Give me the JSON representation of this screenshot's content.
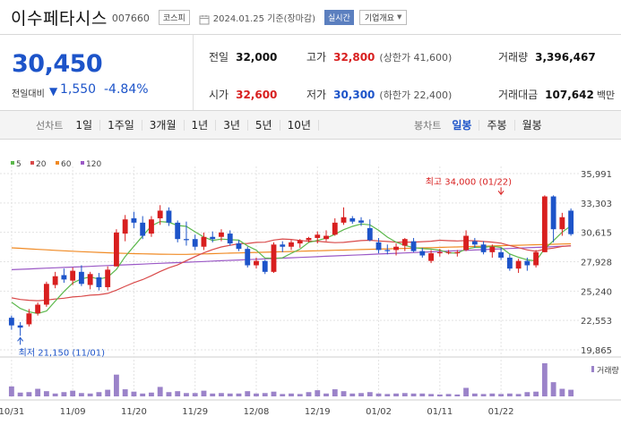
{
  "header": {
    "name": "이수페타시스",
    "code": "007660",
    "market": "코스피",
    "date_text": "2024.01.25 기준(장마감)",
    "live_label": "실시간",
    "company_label": "기업개요"
  },
  "quote": {
    "price": "30,450",
    "change_label": "전일대비",
    "change_arrow": "▼",
    "change_amount": "1,550",
    "change_pct": "-4.84%",
    "prev_close": {
      "label": "전일",
      "value": "32,000"
    },
    "high": {
      "label": "고가",
      "value": "32,800",
      "sub": "(상한가 41,600)"
    },
    "volume": {
      "label": "거래량",
      "value": "3,396,467"
    },
    "open": {
      "label": "시가",
      "value": "32,600"
    },
    "low": {
      "label": "저가",
      "value": "30,300",
      "sub": "(하한가 22,400)"
    },
    "turnover": {
      "label": "거래대금",
      "value": "107,642",
      "unit": "백만"
    }
  },
  "periods": {
    "label": "선차트",
    "items": [
      "1일",
      "1주일",
      "3개월",
      "1년",
      "3년",
      "5년",
      "10년"
    ]
  },
  "candle_periods": {
    "label": "봉차트",
    "items": [
      "일봉",
      "주봉",
      "월봉"
    ],
    "active": "일봉"
  },
  "colors": {
    "up": "#d81f1f",
    "down": "#1d54c9",
    "ma5": "#5cb84c",
    "ma20": "#d94a4a",
    "ma60": "#f08a24",
    "ma120": "#9b59c6",
    "volume": "#9b83c9"
  },
  "chart_data": {
    "type": "candlestick",
    "legend": [
      {
        "name": "5",
        "color": "#5cb84c"
      },
      {
        "name": "20",
        "color": "#d94a4a"
      },
      {
        "name": "60",
        "color": "#f08a24"
      },
      {
        "name": "120",
        "color": "#9b59c6"
      }
    ],
    "y_ticks": [
      "35,991",
      "33,303",
      "30,615",
      "27,928",
      "25,240",
      "22,553",
      "19,865"
    ],
    "y_tick_values": [
      35991,
      33303,
      30615,
      27928,
      25240,
      22553,
      19865
    ],
    "ylim": [
      19865,
      35991
    ],
    "x_ticks": [
      {
        "label": "10/31",
        "index": 0
      },
      {
        "label": "11/09",
        "index": 7
      },
      {
        "label": "11/20",
        "index": 14
      },
      {
        "label": "11/29",
        "index": 21
      },
      {
        "label": "12/08",
        "index": 28
      },
      {
        "label": "12/19",
        "index": 35
      },
      {
        "label": "01/02",
        "index": 42
      },
      {
        "label": "01/11",
        "index": 49
      },
      {
        "label": "01/22",
        "index": 56
      }
    ],
    "annotations": [
      {
        "text": "최고 34,000 (01/22)",
        "index": 56,
        "value": 34000,
        "kind": "high"
      },
      {
        "text": "최저 21,150 (11/01)",
        "index": 1,
        "value": 21150,
        "kind": "low"
      }
    ],
    "volume_label": "거래량",
    "candles": [
      {
        "o": 22800,
        "h": 23000,
        "l": 21700,
        "c": 22100
      },
      {
        "o": 22100,
        "h": 22400,
        "l": 21150,
        "c": 21900
      },
      {
        "o": 22200,
        "h": 23600,
        "l": 22000,
        "c": 23200
      },
      {
        "o": 23200,
        "h": 24200,
        "l": 23000,
        "c": 24000
      },
      {
        "o": 24000,
        "h": 26100,
        "l": 23800,
        "c": 25900
      },
      {
        "o": 25800,
        "h": 27000,
        "l": 25500,
        "c": 26600
      },
      {
        "o": 26700,
        "h": 27300,
        "l": 26000,
        "c": 26300
      },
      {
        "o": 26200,
        "h": 27400,
        "l": 25800,
        "c": 27100
      },
      {
        "o": 27000,
        "h": 27600,
        "l": 25700,
        "c": 25900
      },
      {
        "o": 25800,
        "h": 27000,
        "l": 25400,
        "c": 26800
      },
      {
        "o": 26500,
        "h": 26900,
        "l": 25300,
        "c": 25600
      },
      {
        "o": 25600,
        "h": 27500,
        "l": 25300,
        "c": 27200
      },
      {
        "o": 27500,
        "h": 30900,
        "l": 27500,
        "c": 30600
      },
      {
        "o": 30500,
        "h": 32200,
        "l": 29800,
        "c": 31800
      },
      {
        "o": 31900,
        "h": 32500,
        "l": 31000,
        "c": 31500
      },
      {
        "o": 31500,
        "h": 32100,
        "l": 30000,
        "c": 30300
      },
      {
        "o": 30500,
        "h": 32100,
        "l": 30200,
        "c": 31800
      },
      {
        "o": 31900,
        "h": 33100,
        "l": 31300,
        "c": 32600
      },
      {
        "o": 32600,
        "h": 32900,
        "l": 31200,
        "c": 31500
      },
      {
        "o": 31500,
        "h": 31700,
        "l": 29700,
        "c": 30000
      },
      {
        "o": 30000,
        "h": 31600,
        "l": 29400,
        "c": 29900
      },
      {
        "o": 30000,
        "h": 30400,
        "l": 29000,
        "c": 29300
      },
      {
        "o": 29300,
        "h": 30600,
        "l": 29000,
        "c": 30200
      },
      {
        "o": 30200,
        "h": 30700,
        "l": 29700,
        "c": 30000
      },
      {
        "o": 30200,
        "h": 30900,
        "l": 29800,
        "c": 30600
      },
      {
        "o": 30500,
        "h": 30800,
        "l": 29400,
        "c": 29600
      },
      {
        "o": 29600,
        "h": 29900,
        "l": 28900,
        "c": 29100
      },
      {
        "o": 29100,
        "h": 29300,
        "l": 27400,
        "c": 27600
      },
      {
        "o": 27600,
        "h": 28300,
        "l": 27300,
        "c": 28000
      },
      {
        "o": 28000,
        "h": 28100,
        "l": 26800,
        "c": 27000
      },
      {
        "o": 27000,
        "h": 29700,
        "l": 26900,
        "c": 29500
      },
      {
        "o": 29500,
        "h": 29800,
        "l": 28800,
        "c": 29300
      },
      {
        "o": 29300,
        "h": 29900,
        "l": 29000,
        "c": 29700
      },
      {
        "o": 29600,
        "h": 30000,
        "l": 29200,
        "c": 29900
      },
      {
        "o": 29900,
        "h": 30200,
        "l": 29700,
        "c": 30100
      },
      {
        "o": 30100,
        "h": 30700,
        "l": 29600,
        "c": 30400
      },
      {
        "o": 30000,
        "h": 30800,
        "l": 29800,
        "c": 30300
      },
      {
        "o": 30400,
        "h": 31900,
        "l": 30300,
        "c": 31500
      },
      {
        "o": 31500,
        "h": 32900,
        "l": 31300,
        "c": 32000
      },
      {
        "o": 31900,
        "h": 32100,
        "l": 31400,
        "c": 31600
      },
      {
        "o": 31700,
        "h": 32000,
        "l": 31200,
        "c": 31500
      },
      {
        "o": 31000,
        "h": 31800,
        "l": 29800,
        "c": 29900
      },
      {
        "o": 29700,
        "h": 30100,
        "l": 28700,
        "c": 29000
      },
      {
        "o": 29000,
        "h": 29500,
        "l": 28600,
        "c": 28900
      },
      {
        "o": 29000,
        "h": 29600,
        "l": 28500,
        "c": 29300
      },
      {
        "o": 29400,
        "h": 30100,
        "l": 28900,
        "c": 30000
      },
      {
        "o": 29800,
        "h": 30100,
        "l": 28800,
        "c": 28900
      },
      {
        "o": 28900,
        "h": 29200,
        "l": 28300,
        "c": 28500
      },
      {
        "o": 28000,
        "h": 29000,
        "l": 27800,
        "c": 28700
      },
      {
        "o": 28700,
        "h": 29100,
        "l": 28400,
        "c": 28800
      },
      {
        "o": 28800,
        "h": 29000,
        "l": 28600,
        "c": 28800
      },
      {
        "o": 28700,
        "h": 29000,
        "l": 28400,
        "c": 28800
      },
      {
        "o": 29000,
        "h": 30800,
        "l": 28900,
        "c": 30300
      },
      {
        "o": 29800,
        "h": 30100,
        "l": 29200,
        "c": 29500
      },
      {
        "o": 29500,
        "h": 29800,
        "l": 28600,
        "c": 28800
      },
      {
        "o": 28800,
        "h": 29500,
        "l": 28300,
        "c": 29300
      },
      {
        "o": 28800,
        "h": 29200,
        "l": 28100,
        "c": 28300
      },
      {
        "o": 28300,
        "h": 28600,
        "l": 27100,
        "c": 27300
      },
      {
        "o": 27300,
        "h": 28200,
        "l": 26900,
        "c": 28000
      },
      {
        "o": 28000,
        "h": 28300,
        "l": 27100,
        "c": 27600
      },
      {
        "o": 27600,
        "h": 29000,
        "l": 27400,
        "c": 28800
      },
      {
        "o": 28800,
        "h": 34000,
        "l": 28800,
        "c": 33900
      },
      {
        "o": 33900,
        "h": 34000,
        "l": 29700,
        "c": 30900
      },
      {
        "o": 30900,
        "h": 32400,
        "l": 30300,
        "c": 32000
      },
      {
        "o": 32600,
        "h": 32800,
        "l": 30300,
        "c": 30450
      }
    ],
    "volume": [
      2.1,
      0.8,
      0.9,
      1.6,
      1.1,
      0.6,
      0.9,
      1.2,
      0.7,
      0.6,
      0.9,
      1.4,
      4.6,
      1.5,
      1.0,
      0.6,
      0.8,
      2.0,
      0.9,
      1.1,
      0.7,
      0.7,
      1.2,
      0.6,
      0.7,
      0.6,
      0.6,
      1.1,
      0.6,
      0.7,
      1.0,
      0.5,
      0.6,
      0.5,
      0.9,
      1.3,
      0.6,
      1.5,
      1.1,
      0.6,
      0.7,
      0.9,
      0.6,
      0.5,
      0.6,
      0.7,
      0.6,
      0.6,
      0.5,
      0.4,
      0.5,
      0.4,
      1.8,
      0.6,
      0.5,
      0.6,
      0.5,
      0.6,
      0.5,
      0.9,
      1.0,
      7.0,
      3.0,
      1.6,
      1.4
    ]
  }
}
